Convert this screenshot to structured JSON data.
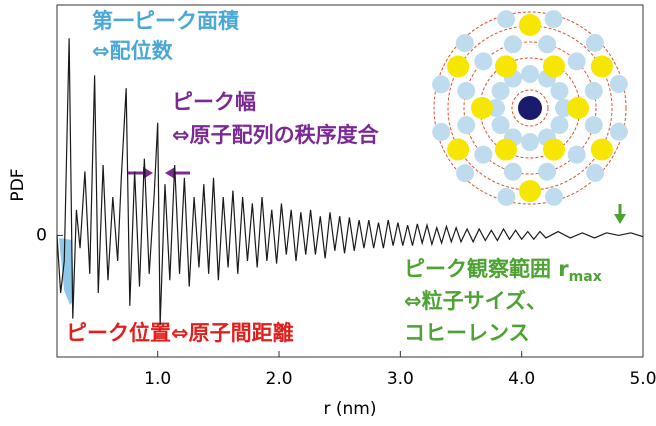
{
  "chart_data": {
    "type": "line",
    "xlabel": "r (nm)",
    "ylabel": "PDF",
    "xlim": [
      0.17,
      5.0
    ],
    "ylim": [
      -0.95,
      1.8
    ],
    "xticks": [
      {
        "value": 1,
        "label": "1.0"
      },
      {
        "value": 2,
        "label": "2.0"
      },
      {
        "value": 3,
        "label": "3.0"
      },
      {
        "value": 4,
        "label": "4.0"
      },
      {
        "value": 5,
        "label": "5.0"
      }
    ],
    "yticks": [
      0
    ],
    "color": "#1a1a1a",
    "x": [
      0.17,
      0.2,
      0.23,
      0.27,
      0.3,
      0.33,
      0.36,
      0.4,
      0.44,
      0.48,
      0.51,
      0.55,
      0.59,
      0.63,
      0.67,
      0.7,
      0.74,
      0.77,
      0.81,
      0.85,
      0.89,
      0.93,
      0.97,
      1.0,
      1.02,
      1.06,
      1.1,
      1.14,
      1.18,
      1.22,
      1.26,
      1.3,
      1.34,
      1.38,
      1.42,
      1.46,
      1.5,
      1.54,
      1.58,
      1.62,
      1.66,
      1.7,
      1.74,
      1.78,
      1.82,
      1.86,
      1.9,
      1.94,
      1.98,
      2.02,
      2.06,
      2.1,
      2.14,
      2.18,
      2.22,
      2.26,
      2.3,
      2.34,
      2.38,
      2.42,
      2.46,
      2.5,
      2.54,
      2.58,
      2.62,
      2.66,
      2.7,
      2.74,
      2.78,
      2.82,
      2.86,
      2.9,
      2.94,
      2.98,
      3.02,
      3.06,
      3.1,
      3.14,
      3.18,
      3.22,
      3.26,
      3.3,
      3.34,
      3.38,
      3.42,
      3.46,
      3.5,
      3.55,
      3.6,
      3.65,
      3.7,
      3.75,
      3.8,
      3.85,
      3.9,
      3.95,
      4.0,
      4.05,
      4.1,
      4.15,
      4.2,
      4.3,
      4.4,
      4.5,
      4.6,
      4.7,
      4.8,
      4.9,
      5.0
    ],
    "values": [
      0.0,
      -0.45,
      -0.2,
      1.54,
      -0.65,
      0.2,
      -0.1,
      0.5,
      -0.3,
      1.25,
      -0.45,
      0.55,
      -0.35,
      0.3,
      -0.2,
      0.45,
      1.15,
      -0.55,
      0.5,
      -0.4,
      0.6,
      -0.3,
      0.3,
      0.88,
      -0.7,
      0.4,
      -0.35,
      0.55,
      -0.3,
      0.45,
      -0.4,
      0.3,
      -0.25,
      0.4,
      -0.3,
      0.45,
      -0.35,
      0.3,
      -0.25,
      0.35,
      -0.3,
      0.3,
      -0.2,
      0.25,
      -0.25,
      0.3,
      -0.2,
      0.2,
      -0.22,
      0.25,
      -0.15,
      0.2,
      -0.2,
      0.18,
      -0.15,
      0.2,
      -0.15,
      0.15,
      -0.18,
      0.18,
      -0.12,
      0.15,
      -0.14,
      0.14,
      -0.12,
      0.12,
      -0.1,
      0.12,
      -0.1,
      0.1,
      -0.1,
      0.12,
      -0.08,
      0.1,
      -0.08,
      0.08,
      -0.08,
      0.09,
      -0.06,
      0.08,
      -0.07,
      0.06,
      -0.06,
      0.07,
      -0.05,
      0.06,
      -0.05,
      0.05,
      -0.05,
      0.05,
      -0.04,
      0.04,
      -0.04,
      0.05,
      -0.03,
      0.04,
      -0.03,
      0.03,
      -0.03,
      0.03,
      -0.02,
      0.03,
      -0.02,
      0.02,
      -0.02,
      0.02,
      0.0,
      0.02,
      -0.01
    ],
    "annotations": {
      "area": [
        "第一ピーク面積",
        "⇔配位数"
      ],
      "width": [
        "ピーク幅",
        "⇔原子配列の秩序度合"
      ],
      "range": {
        "text": "ピーク観察範囲 r",
        "sub": "max",
        "lines": [
          "⇔粒子サイズ、",
          "コヒーレンス"
        ]
      },
      "position": "ピーク位置⇔原子間距離"
    }
  }
}
